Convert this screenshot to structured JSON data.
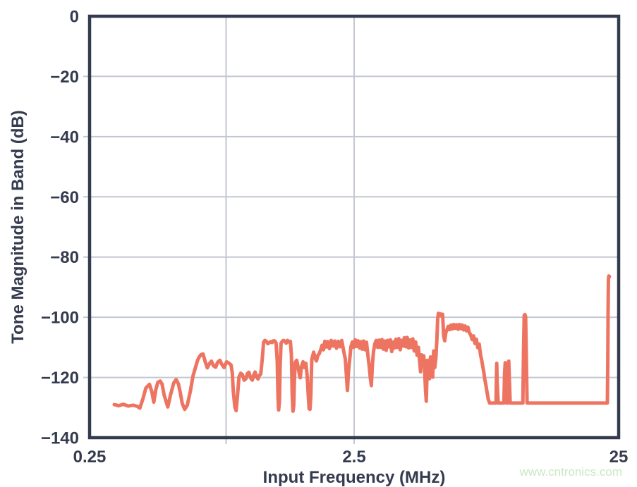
{
  "watermark": {
    "text": "www.cntronics.com",
    "color": "#c9e9c1"
  },
  "colors": {
    "axis": "#343b4f",
    "grid": "#c3c7d2",
    "curve": "#ee7462",
    "text": "#343b4f",
    "background": "#ffffff"
  },
  "chart_data": {
    "type": "line",
    "title": "",
    "xlabel": "Input Frequency (MHz)",
    "ylabel": "Tone Magnitude in Band (dB)",
    "x_scale": "log",
    "x_range_mhz": [
      0.25,
      25
    ],
    "y_range_db": [
      -140,
      0
    ],
    "grid": true,
    "legend": false,
    "x_ticks": [
      {
        "value": 0.25,
        "label": "0.25"
      },
      {
        "value": 2.5,
        "label": "2.5"
      },
      {
        "value": 25,
        "label": "25"
      }
    ],
    "y_ticks": [
      {
        "value": 0,
        "label": "0"
      },
      {
        "value": -20,
        "label": "−20"
      },
      {
        "value": -40,
        "label": "−40"
      },
      {
        "value": -60,
        "label": "−60"
      },
      {
        "value": -80,
        "label": "−80"
      },
      {
        "value": -100,
        "label": "−100"
      },
      {
        "value": -120,
        "label": "−120"
      },
      {
        "value": -140,
        "label": "−140"
      }
    ],
    "x_gridlines_mhz": [
      0.82,
      2.5
    ],
    "series": [
      {
        "name": "Tone Magnitude",
        "color": "#ee7462",
        "points": [
          [
            0.31,
            -129.0
          ],
          [
            0.322,
            -129.4
          ],
          [
            0.335,
            -128.9
          ],
          [
            0.35,
            -129.5
          ],
          [
            0.365,
            -129.2
          ],
          [
            0.379,
            -129.6
          ],
          [
            0.387,
            -130.2
          ],
          [
            0.398,
            -127.0
          ],
          [
            0.408,
            -123.5
          ],
          [
            0.421,
            -122.3
          ],
          [
            0.43,
            -124.8
          ],
          [
            0.437,
            -128.2
          ],
          [
            0.445,
            -124.0
          ],
          [
            0.453,
            -121.6
          ],
          [
            0.462,
            -121.2
          ],
          [
            0.47,
            -122.2
          ],
          [
            0.478,
            -125.8
          ],
          [
            0.494,
            -129.8
          ],
          [
            0.505,
            -126.0
          ],
          [
            0.52,
            -121.8
          ],
          [
            0.531,
            -120.7
          ],
          [
            0.542,
            -122.2
          ],
          [
            0.551,
            -125.2
          ],
          [
            0.56,
            -128.6
          ],
          [
            0.572,
            -130.6
          ],
          [
            0.585,
            -129.2
          ],
          [
            0.601,
            -124.5
          ],
          [
            0.615,
            -119.5
          ],
          [
            0.627,
            -117.0
          ],
          [
            0.64,
            -114.3
          ],
          [
            0.65,
            -113.1
          ],
          [
            0.66,
            -112.4
          ],
          [
            0.671,
            -112.2
          ],
          [
            0.683,
            -114.6
          ],
          [
            0.696,
            -116.8
          ],
          [
            0.71,
            -115.4
          ],
          [
            0.722,
            -114.6
          ],
          [
            0.735,
            -116.1
          ],
          [
            0.749,
            -116.6
          ],
          [
            0.762,
            -115.0
          ],
          [
            0.777,
            -114.3
          ],
          [
            0.79,
            -115.6
          ],
          [
            0.806,
            -116.7
          ],
          [
            0.824,
            -114.8
          ],
          [
            0.842,
            -115.3
          ],
          [
            0.857,
            -115.9
          ],
          [
            0.866,
            -118.5
          ],
          [
            0.873,
            -124.5
          ],
          [
            0.885,
            -129.8
          ],
          [
            0.895,
            -131.0
          ],
          [
            0.905,
            -126.5
          ],
          [
            0.918,
            -119.8
          ],
          [
            0.932,
            -118.6
          ],
          [
            0.946,
            -119.1
          ],
          [
            0.96,
            -120.9
          ],
          [
            0.975,
            -120.4
          ],
          [
            0.988,
            -118.7
          ],
          [
            1.0,
            -118.3
          ],
          [
            1.015,
            -120.1
          ],
          [
            1.031,
            -120.9
          ],
          [
            1.044,
            -119.1
          ],
          [
            1.056,
            -118.2
          ],
          [
            1.07,
            -119.9
          ],
          [
            1.083,
            -120.5
          ],
          [
            1.096,
            -119.3
          ],
          [
            1.109,
            -118.9
          ],
          [
            1.122,
            -114.5
          ],
          [
            1.137,
            -108.3
          ],
          [
            1.15,
            -107.7
          ],
          [
            1.165,
            -108.0
          ],
          [
            1.18,
            -108.8
          ],
          [
            1.194,
            -108.5
          ],
          [
            1.21,
            -108.1
          ],
          [
            1.224,
            -108.4
          ],
          [
            1.24,
            -107.8
          ],
          [
            1.254,
            -107.9
          ],
          [
            1.268,
            -108.6
          ],
          [
            1.28,
            -114.5
          ],
          [
            1.289,
            -126.5
          ],
          [
            1.296,
            -130.8
          ],
          [
            1.305,
            -128.0
          ],
          [
            1.313,
            -116.5
          ],
          [
            1.323,
            -108.6
          ],
          [
            1.333,
            -108.2
          ],
          [
            1.35,
            -107.7
          ],
          [
            1.367,
            -107.9
          ],
          [
            1.384,
            -108.6
          ],
          [
            1.4,
            -107.7
          ],
          [
            1.417,
            -108.2
          ],
          [
            1.435,
            -108.0
          ],
          [
            1.448,
            -112.5
          ],
          [
            1.458,
            -125.5
          ],
          [
            1.468,
            -131.2
          ],
          [
            1.478,
            -129.5
          ],
          [
            1.487,
            -120.5
          ],
          [
            1.497,
            -115.0
          ],
          [
            1.517,
            -114.3
          ],
          [
            1.537,
            -116.9
          ],
          [
            1.555,
            -119.4
          ],
          [
            1.564,
            -120.1
          ],
          [
            1.58,
            -116.4
          ],
          [
            1.603,
            -114.8
          ],
          [
            1.622,
            -116.7
          ],
          [
            1.643,
            -115.3
          ],
          [
            1.662,
            -119.6
          ],
          [
            1.675,
            -125.2
          ],
          [
            1.69,
            -130.4
          ],
          [
            1.702,
            -130.6
          ],
          [
            1.715,
            -126.0
          ],
          [
            1.73,
            -114.0
          ],
          [
            1.757,
            -111.6
          ],
          [
            1.78,
            -113.7
          ],
          [
            1.801,
            -114.5
          ],
          [
            1.822,
            -112.7
          ],
          [
            1.845,
            -112.1
          ],
          [
            1.868,
            -110.9
          ],
          [
            1.891,
            -109.3
          ],
          [
            1.915,
            -110.8
          ],
          [
            1.938,
            -108.0
          ],
          [
            1.962,
            -109.9
          ],
          [
            1.986,
            -108.1
          ],
          [
            2.017,
            -110.4
          ],
          [
            2.048,
            -107.7
          ],
          [
            2.08,
            -109.6
          ],
          [
            2.112,
            -107.9
          ],
          [
            2.144,
            -110.3
          ],
          [
            2.177,
            -108.0
          ],
          [
            2.211,
            -109.8
          ],
          [
            2.245,
            -107.7
          ],
          [
            2.28,
            -111.0
          ],
          [
            2.315,
            -113.9
          ],
          [
            2.337,
            -119.0
          ],
          [
            2.358,
            -124.3
          ],
          [
            2.38,
            -118.0
          ],
          [
            2.402,
            -114.5
          ],
          [
            2.432,
            -109.8
          ],
          [
            2.462,
            -108.2
          ],
          [
            2.492,
            -110.0
          ],
          [
            2.523,
            -107.5
          ],
          [
            2.555,
            -109.7
          ],
          [
            2.586,
            -107.8
          ],
          [
            2.618,
            -110.2
          ],
          [
            2.65,
            -108.1
          ],
          [
            2.682,
            -110.6
          ],
          [
            2.715,
            -107.9
          ],
          [
            2.749,
            -110.8
          ],
          [
            2.783,
            -108.3
          ],
          [
            2.817,
            -112.3
          ],
          [
            2.851,
            -116.3
          ],
          [
            2.877,
            -120.0
          ],
          [
            2.904,
            -122.7
          ],
          [
            2.931,
            -115.8
          ],
          [
            2.958,
            -111.5
          ],
          [
            2.995,
            -108.8
          ],
          [
            3.032,
            -107.7
          ],
          [
            3.069,
            -110.0
          ],
          [
            3.107,
            -107.6
          ],
          [
            3.145,
            -110.0
          ],
          [
            3.184,
            -107.4
          ],
          [
            3.223,
            -110.6
          ],
          [
            3.263,
            -107.9
          ],
          [
            3.303,
            -111.0
          ],
          [
            3.344,
            -107.7
          ],
          [
            3.385,
            -109.8
          ],
          [
            3.427,
            -107.5
          ],
          [
            3.469,
            -111.4
          ],
          [
            3.511,
            -108.2
          ],
          [
            3.554,
            -110.2
          ],
          [
            3.598,
            -107.3
          ],
          [
            3.643,
            -110.0
          ],
          [
            3.688,
            -107.1
          ],
          [
            3.733,
            -110.8
          ],
          [
            3.779,
            -107.7
          ],
          [
            3.825,
            -109.6
          ],
          [
            3.872,
            -106.8
          ],
          [
            3.92,
            -109.8
          ],
          [
            3.968,
            -106.7
          ],
          [
            4.017,
            -110.2
          ],
          [
            4.067,
            -107.5
          ],
          [
            4.117,
            -110.0
          ],
          [
            4.167,
            -107.2
          ],
          [
            4.219,
            -111.2
          ],
          [
            4.271,
            -108.2
          ],
          [
            4.323,
            -112.6
          ],
          [
            4.376,
            -110.0
          ],
          [
            4.417,
            -114.3
          ],
          [
            4.458,
            -118.1
          ],
          [
            4.5,
            -112.5
          ],
          [
            4.542,
            -116.0
          ],
          [
            4.584,
            -112.8
          ],
          [
            4.627,
            -119.3
          ],
          [
            4.655,
            -124.2
          ],
          [
            4.684,
            -127.9
          ],
          [
            4.728,
            -114.3
          ],
          [
            4.772,
            -116.3
          ],
          [
            4.816,
            -120.4
          ],
          [
            4.861,
            -113.2
          ],
          [
            4.906,
            -117.3
          ],
          [
            4.952,
            -119.9
          ],
          [
            4.998,
            -111.2
          ],
          [
            5.045,
            -116.7
          ],
          [
            5.092,
            -113.5
          ],
          [
            5.139,
            -107.0
          ],
          [
            5.171,
            -100.8
          ],
          [
            5.203,
            -98.7
          ],
          [
            5.251,
            -99.4
          ],
          [
            5.3,
            -98.9
          ],
          [
            5.349,
            -99.6
          ],
          [
            5.399,
            -99.0
          ],
          [
            5.424,
            -102.2
          ],
          [
            5.449,
            -106.2
          ],
          [
            5.5,
            -107.8
          ],
          [
            5.551,
            -105.2
          ],
          [
            5.603,
            -104.3
          ],
          [
            5.672,
            -103.0
          ],
          [
            5.742,
            -104.1
          ],
          [
            5.813,
            -102.6
          ],
          [
            5.884,
            -103.9
          ],
          [
            5.957,
            -102.4
          ],
          [
            6.03,
            -103.7
          ],
          [
            6.104,
            -102.5
          ],
          [
            6.179,
            -104.0
          ],
          [
            6.255,
            -102.4
          ],
          [
            6.332,
            -103.8
          ],
          [
            6.41,
            -102.6
          ],
          [
            6.489,
            -104.2
          ],
          [
            6.569,
            -102.9
          ],
          [
            6.65,
            -104.5
          ],
          [
            6.732,
            -103.3
          ],
          [
            6.815,
            -105.1
          ],
          [
            6.899,
            -105.9
          ],
          [
            6.983,
            -107.4
          ],
          [
            7.069,
            -106.2
          ],
          [
            7.156,
            -108.7
          ],
          [
            7.245,
            -107.3
          ],
          [
            7.334,
            -110.1
          ],
          [
            7.424,
            -108.9
          ],
          [
            7.515,
            -112.5
          ],
          [
            7.585,
            -114.2
          ],
          [
            7.655,
            -116.3
          ],
          [
            7.726,
            -118.2
          ],
          [
            7.797,
            -120.6
          ],
          [
            7.869,
            -122.4
          ],
          [
            7.942,
            -124.6
          ],
          [
            8.04,
            -127.3
          ],
          [
            8.139,
            -128.5
          ],
          [
            8.392,
            -128.5
          ],
          [
            8.6,
            -128.5
          ],
          [
            8.627,
            -120.5
          ],
          [
            8.654,
            -115.3
          ],
          [
            8.681,
            -121.5
          ],
          [
            8.76,
            -128.5
          ],
          [
            9.0,
            -128.5
          ],
          [
            9.204,
            -128.5
          ],
          [
            9.26,
            -118.5
          ],
          [
            9.316,
            -115.1
          ],
          [
            9.374,
            -122.0
          ],
          [
            9.431,
            -128.5
          ],
          [
            9.497,
            -128.5
          ],
          [
            9.55,
            -120.5
          ],
          [
            9.605,
            -114.6
          ],
          [
            9.661,
            -121.5
          ],
          [
            9.723,
            -128.5
          ],
          [
            10.088,
            -128.5
          ],
          [
            10.5,
            -128.5
          ],
          [
            10.857,
            -128.5
          ],
          [
            10.923,
            -110.5
          ],
          [
            10.99,
            -99.4
          ],
          [
            11.057,
            -99.1
          ],
          [
            11.125,
            -99.8
          ],
          [
            11.194,
            -113.0
          ],
          [
            11.264,
            -128.5
          ],
          [
            11.7,
            -128.5
          ],
          [
            12.126,
            -128.5
          ],
          [
            13.0,
            -128.5
          ],
          [
            13.707,
            -128.5
          ],
          [
            14.6,
            -128.5
          ],
          [
            15.493,
            -128.5
          ],
          [
            16.5,
            -128.5
          ],
          [
            17.516,
            -128.5
          ],
          [
            18.65,
            -128.5
          ],
          [
            19.803,
            -128.5
          ],
          [
            21.0,
            -128.5
          ],
          [
            22.108,
            -128.5
          ],
          [
            22.523,
            -128.5
          ],
          [
            22.666,
            -128.5
          ],
          [
            22.75,
            -115.0
          ],
          [
            22.8,
            -99.0
          ],
          [
            22.87,
            -87.3
          ],
          [
            22.94,
            -86.3
          ],
          [
            23.086,
            -86.5
          ]
        ]
      }
    ]
  }
}
